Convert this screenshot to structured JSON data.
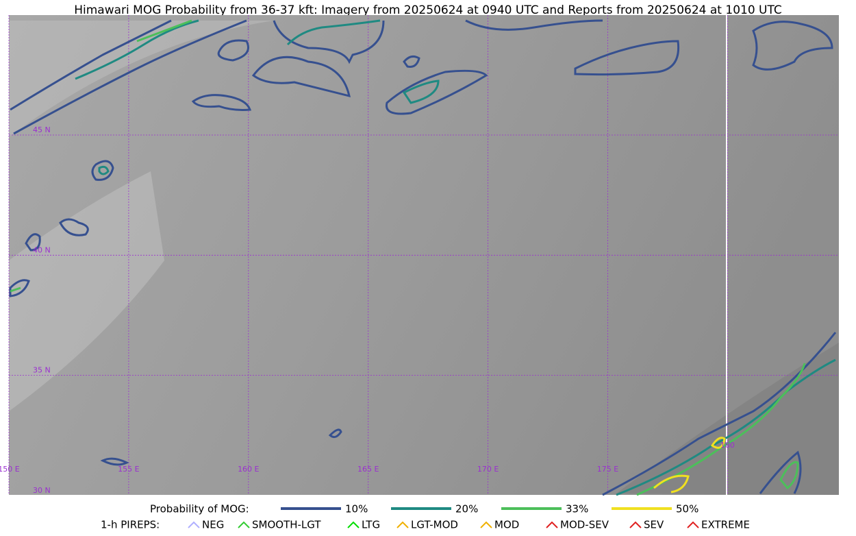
{
  "header": {
    "title": "Himawari MOG Probability from 36-37 kft: Imagery from 20250624 at 0940 UTC and Reports from 20250624 at 1010 UTC"
  },
  "map": {
    "lat_labels": [
      "45 N",
      "40 N",
      "35 N",
      "30 N"
    ],
    "lon_labels": [
      "150 E",
      "155 E",
      "160 E",
      "165 E",
      "170 E",
      "175 E",
      "180"
    ]
  },
  "legend": {
    "probability_title": "Probability of MOG:",
    "probability_levels": [
      {
        "label": "10%",
        "color": "#36508f"
      },
      {
        "label": "20%",
        "color": "#1f8a82"
      },
      {
        "label": "33%",
        "color": "#4cbf5a"
      },
      {
        "label": "50%",
        "color": "#f0e020"
      }
    ],
    "pireps_title": "1-h PIREPS:",
    "pireps": [
      {
        "label": "NEG",
        "color": "#b0b0ff"
      },
      {
        "label": "SMOOTH-LGT",
        "color": "#33cc33"
      },
      {
        "label": "LTG",
        "color": "#00dd00"
      },
      {
        "label": "LGT-MOD",
        "color": "#f0b000"
      },
      {
        "label": "MOD",
        "color": "#f0b000"
      },
      {
        "label": "MOD-SEV",
        "color": "#e02020"
      },
      {
        "label": "SEV",
        "color": "#e02020"
      },
      {
        "label": "EXTREME",
        "color": "#e02020"
      }
    ]
  }
}
